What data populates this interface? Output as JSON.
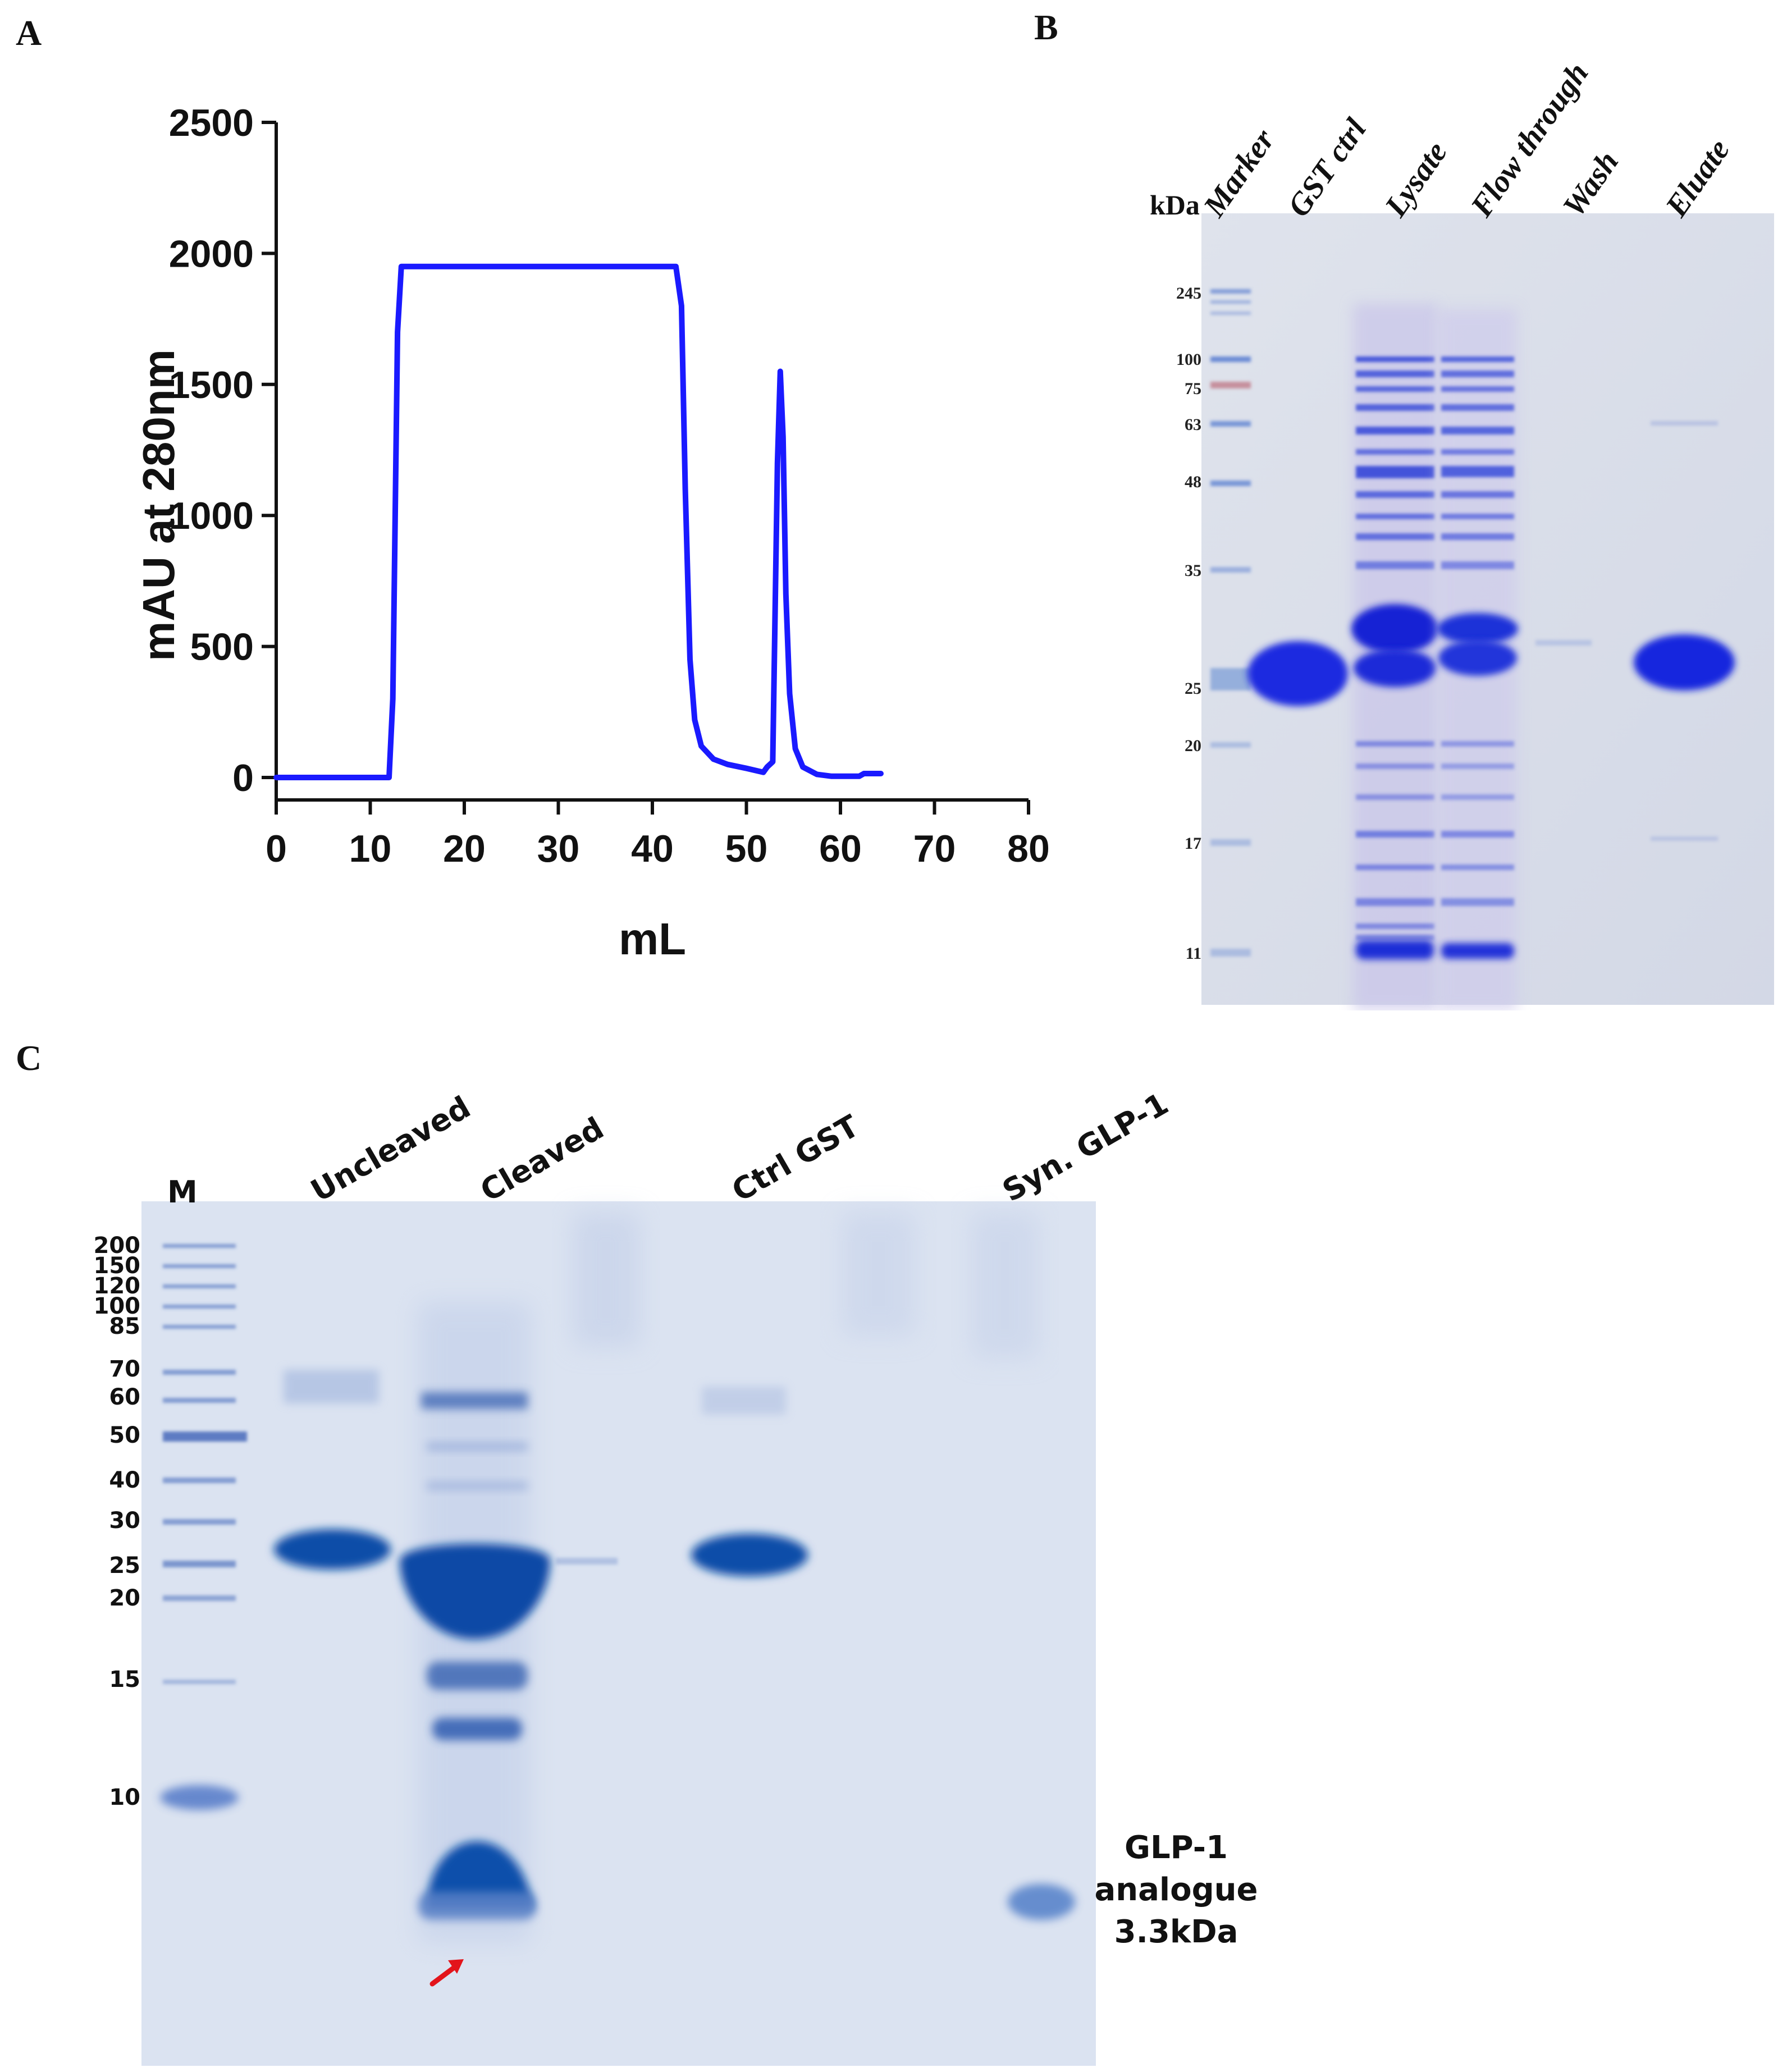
{
  "panels": {
    "a": "A",
    "b": "B",
    "c": "C"
  },
  "chart_data": [
    {
      "type": "line",
      "xlabel": "mL",
      "ylabel": "mAU at 280nm",
      "xlim": [
        0,
        80
      ],
      "ylim": [
        0,
        2500
      ],
      "xticks": [
        "0",
        "10",
        "20",
        "30",
        "40",
        "50",
        "60",
        "70",
        "80"
      ],
      "yticks": [
        "0",
        "500",
        "1000",
        "1500",
        "2000",
        "2500"
      ],
      "grid": false,
      "color": "#1a1aff",
      "series": [
        {
          "x": [
            0,
            8,
            12,
            12.4,
            12.9,
            13.3,
            13.9,
            17,
            30,
            42.5,
            43.1,
            43.5,
            44,
            44.5,
            45.2,
            46.5,
            48,
            50,
            51.8,
            52.2,
            52.8,
            53.3,
            53.6,
            53.9,
            54.2,
            54.6,
            55.2,
            56,
            57.5,
            59,
            60.5,
            62,
            62.5,
            64.3
          ],
          "y": [
            0,
            0,
            0,
            300,
            1700,
            1950,
            1950,
            1950,
            1950,
            1950,
            1800,
            1100,
            450,
            220,
            120,
            70,
            50,
            35,
            20,
            40,
            60,
            1200,
            1550,
            1300,
            700,
            320,
            110,
            40,
            12,
            5,
            5,
            5,
            15,
            15
          ]
        }
      ]
    },
    {
      "type": "gel",
      "unit": "kDa",
      "lanes": [
        "Marker",
        "GST ctrl",
        "Lysate",
        "Flow through",
        "Wash",
        "Eluate"
      ],
      "marker_kda": [
        "245",
        "100",
        "75",
        "63",
        "48",
        "35",
        "25",
        "20",
        "17",
        "11"
      ]
    },
    {
      "type": "gel",
      "lanes": [
        "M",
        "Uncleaved",
        "Cleaved",
        "Ctrl GST",
        "Syn. GLP-1"
      ],
      "marker_kda": [
        "200",
        "150",
        "120",
        "100",
        "85",
        "70",
        "60",
        "50",
        "40",
        "30",
        "25",
        "20",
        "15",
        "10"
      ],
      "annotation": [
        "GLP-1",
        "analogue",
        "3.3kDa"
      ]
    }
  ]
}
